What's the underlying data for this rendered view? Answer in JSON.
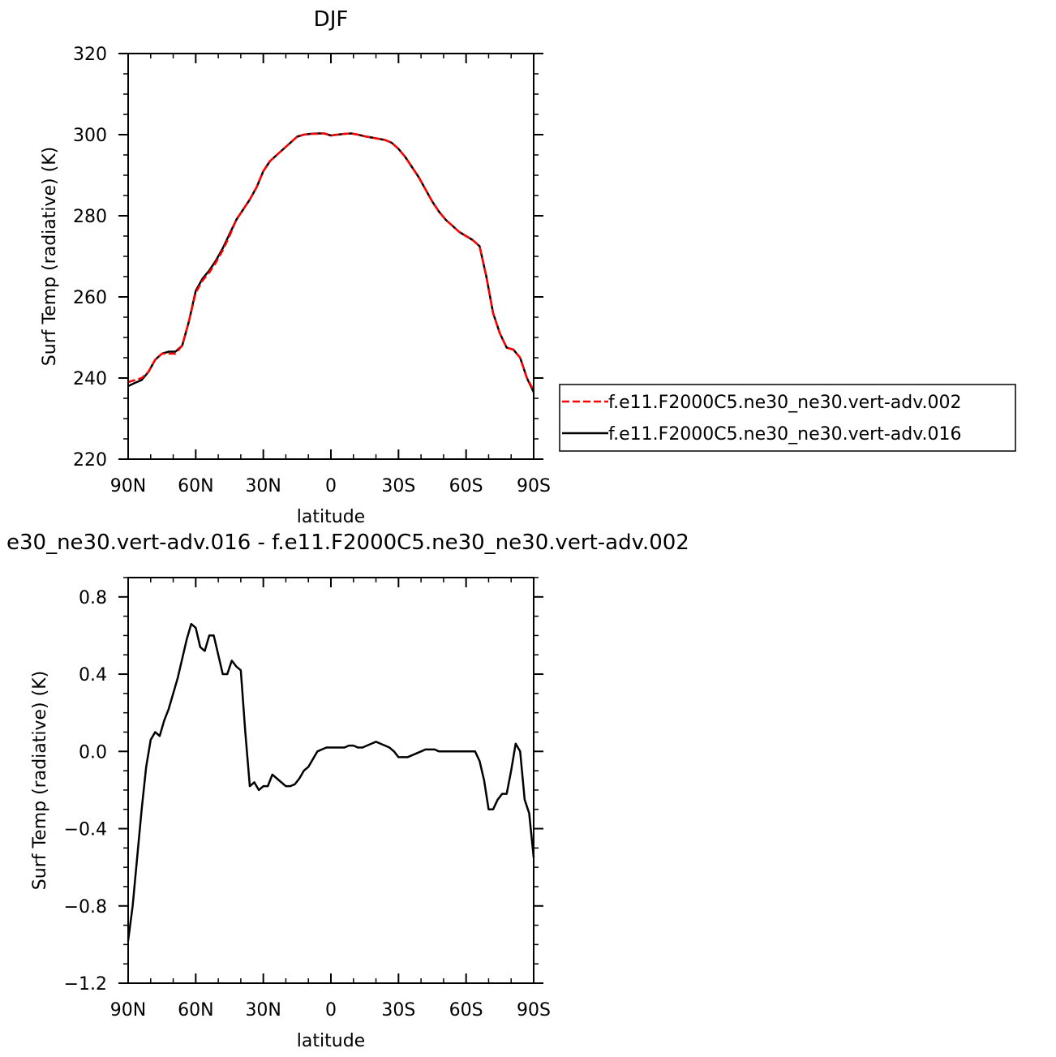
{
  "chart_data": [
    {
      "type": "line",
      "title": "DJF",
      "xlabel": "latitude",
      "ylabel": "Surf Temp (radiative) (K)",
      "xlim": [
        90,
        -90
      ],
      "ylim": [
        220,
        320
      ],
      "xticks": [
        {
          "value": 90,
          "label": "90N"
        },
        {
          "value": 60,
          "label": "60N"
        },
        {
          "value": 30,
          "label": "30N"
        },
        {
          "value": 0,
          "label": "0"
        },
        {
          "value": -30,
          "label": "30S"
        },
        {
          "value": -60,
          "label": "60S"
        },
        {
          "value": -90,
          "label": "90S"
        }
      ],
      "yticks": [
        {
          "value": 220,
          "label": "220"
        },
        {
          "value": 240,
          "label": "240"
        },
        {
          "value": 260,
          "label": "260"
        },
        {
          "value": 280,
          "label": "280"
        },
        {
          "value": 300,
          "label": "300"
        },
        {
          "value": 320,
          "label": "320"
        }
      ],
      "legend": {
        "placement": "right",
        "box": true
      },
      "series": [
        {
          "name": "f.e11.F2000C5.ne30_ne30.vert-adv.002",
          "color": "#ff0000",
          "dash": "dashed",
          "points": [
            [
              90,
              239.0
            ],
            [
              87,
              239.5
            ],
            [
              84,
              240.0
            ],
            [
              81,
              241.5
            ],
            [
              78,
              244.5
            ],
            [
              75,
              246.0
            ],
            [
              72,
              246.0
            ],
            [
              69,
              246.0
            ],
            [
              66,
              248.0
            ],
            [
              63,
              254.0
            ],
            [
              60,
              261.0
            ],
            [
              57,
              264.0
            ],
            [
              54,
              266.0
            ],
            [
              51,
              268.5
            ],
            [
              48,
              271.5
            ],
            [
              45,
              275.0
            ],
            [
              42,
              279.0
            ],
            [
              39,
              281.5
            ],
            [
              36,
              284.0
            ],
            [
              33,
              287.0
            ],
            [
              30,
              291.0
            ],
            [
              27,
              293.5
            ],
            [
              24,
              295.0
            ],
            [
              21,
              296.5
            ],
            [
              18,
              298.0
            ],
            [
              15,
              299.5
            ],
            [
              12,
              300.0
            ],
            [
              9,
              300.2
            ],
            [
              6,
              300.2
            ],
            [
              3,
              300.3
            ],
            [
              0,
              299.8
            ],
            [
              -3,
              300.0
            ],
            [
              -6,
              300.2
            ],
            [
              -9,
              300.3
            ],
            [
              -12,
              300.0
            ],
            [
              -15,
              299.6
            ],
            [
              -18,
              299.3
            ],
            [
              -21,
              299.0
            ],
            [
              -24,
              298.7
            ],
            [
              -27,
              298.0
            ],
            [
              -30,
              296.5
            ],
            [
              -33,
              294.5
            ],
            [
              -36,
              292.0
            ],
            [
              -39,
              289.5
            ],
            [
              -42,
              286.5
            ],
            [
              -45,
              283.5
            ],
            [
              -48,
              281.0
            ],
            [
              -51,
              279.0
            ],
            [
              -54,
              277.5
            ],
            [
              -57,
              276.0
            ],
            [
              -60,
              275.0
            ],
            [
              -63,
              274.0
            ],
            [
              -66,
              272.5
            ],
            [
              -69,
              265.0
            ],
            [
              -72,
              256.0
            ],
            [
              -75,
              251.0
            ],
            [
              -78,
              247.5
            ],
            [
              -81,
              247.0
            ],
            [
              -84,
              245.0
            ],
            [
              -87,
              240.0
            ],
            [
              -90,
              237.0
            ]
          ]
        },
        {
          "name": "f.e11.F2000C5.ne30_ne30.vert-adv.016",
          "color": "#000000",
          "dash": "solid",
          "points": [
            [
              90,
              238.0
            ],
            [
              87,
              238.8
            ],
            [
              84,
              239.5
            ],
            [
              81,
              241.5
            ],
            [
              78,
              244.5
            ],
            [
              75,
              246.0
            ],
            [
              72,
              246.5
            ],
            [
              69,
              246.5
            ],
            [
              66,
              248.0
            ],
            [
              63,
              254.0
            ],
            [
              60,
              261.5
            ],
            [
              57,
              264.5
            ],
            [
              54,
              266.5
            ],
            [
              51,
              269.0
            ],
            [
              48,
              272.0
            ],
            [
              45,
              275.5
            ],
            [
              42,
              279.0
            ],
            [
              39,
              281.5
            ],
            [
              36,
              284.0
            ],
            [
              33,
              287.0
            ],
            [
              30,
              291.0
            ],
            [
              27,
              293.5
            ],
            [
              24,
              295.0
            ],
            [
              21,
              296.5
            ],
            [
              18,
              298.0
            ],
            [
              15,
              299.5
            ],
            [
              12,
              300.0
            ],
            [
              9,
              300.2
            ],
            [
              6,
              300.3
            ],
            [
              3,
              300.3
            ],
            [
              0,
              299.8
            ],
            [
              -3,
              300.0
            ],
            [
              -6,
              300.2
            ],
            [
              -9,
              300.3
            ],
            [
              -12,
              300.0
            ],
            [
              -15,
              299.6
            ],
            [
              -18,
              299.3
            ],
            [
              -21,
              299.0
            ],
            [
              -24,
              298.7
            ],
            [
              -27,
              298.0
            ],
            [
              -30,
              296.5
            ],
            [
              -33,
              294.5
            ],
            [
              -36,
              292.0
            ],
            [
              -39,
              289.5
            ],
            [
              -42,
              286.5
            ],
            [
              -45,
              283.5
            ],
            [
              -48,
              281.0
            ],
            [
              -51,
              279.0
            ],
            [
              -54,
              277.5
            ],
            [
              -57,
              276.0
            ],
            [
              -60,
              275.0
            ],
            [
              -63,
              274.0
            ],
            [
              -66,
              272.5
            ],
            [
              -69,
              265.0
            ],
            [
              -72,
              256.0
            ],
            [
              -75,
              251.0
            ],
            [
              -78,
              247.5
            ],
            [
              -81,
              247.0
            ],
            [
              -84,
              245.0
            ],
            [
              -87,
              240.0
            ],
            [
              -90,
              236.5
            ]
          ]
        }
      ]
    },
    {
      "type": "line",
      "title": "e30_ne30.vert-adv.016 - f.e11.F2000C5.ne30_ne30.vert-adv.002",
      "xlabel": "latitude",
      "ylabel": "Surf Temp (radiative) (K)",
      "xlim": [
        90,
        -90
      ],
      "ylim": [
        -1.2,
        0.9
      ],
      "xticks": [
        {
          "value": 90,
          "label": "90N"
        },
        {
          "value": 60,
          "label": "60N"
        },
        {
          "value": 30,
          "label": "30N"
        },
        {
          "value": 0,
          "label": "0"
        },
        {
          "value": -30,
          "label": "30S"
        },
        {
          "value": -60,
          "label": "60S"
        },
        {
          "value": -90,
          "label": "90S"
        }
      ],
      "yticks": [
        {
          "value": -1.2,
          "label": "−1.2"
        },
        {
          "value": -0.8,
          "label": "−0.8"
        },
        {
          "value": -0.4,
          "label": "−0.4"
        },
        {
          "value": 0.0,
          "label": "0.0"
        },
        {
          "value": 0.4,
          "label": "0.4"
        },
        {
          "value": 0.8,
          "label": "0.8"
        }
      ],
      "series": [
        {
          "color": "#000000",
          "dash": "solid",
          "points": [
            [
              90,
              -0.98
            ],
            [
              88,
              -0.8
            ],
            [
              86,
              -0.55
            ],
            [
              84,
              -0.3
            ],
            [
              82,
              -0.08
            ],
            [
              80,
              0.06
            ],
            [
              78,
              0.1
            ],
            [
              76,
              0.08
            ],
            [
              74,
              0.16
            ],
            [
              72,
              0.22
            ],
            [
              70,
              0.3
            ],
            [
              68,
              0.38
            ],
            [
              66,
              0.48
            ],
            [
              64,
              0.58
            ],
            [
              62,
              0.66
            ],
            [
              60,
              0.64
            ],
            [
              58,
              0.54
            ],
            [
              56,
              0.52
            ],
            [
              54,
              0.6
            ],
            [
              52,
              0.6
            ],
            [
              50,
              0.5
            ],
            [
              48,
              0.4
            ],
            [
              46,
              0.4
            ],
            [
              44,
              0.47
            ],
            [
              42,
              0.44
            ],
            [
              40,
              0.42
            ],
            [
              38,
              0.1
            ],
            [
              36,
              -0.18
            ],
            [
              34,
              -0.16
            ],
            [
              32,
              -0.2
            ],
            [
              30,
              -0.18
            ],
            [
              28,
              -0.18
            ],
            [
              26,
              -0.12
            ],
            [
              24,
              -0.14
            ],
            [
              22,
              -0.16
            ],
            [
              20,
              -0.18
            ],
            [
              18,
              -0.18
            ],
            [
              16,
              -0.17
            ],
            [
              14,
              -0.14
            ],
            [
              12,
              -0.1
            ],
            [
              10,
              -0.08
            ],
            [
              8,
              -0.04
            ],
            [
              6,
              0.0
            ],
            [
              4,
              0.01
            ],
            [
              2,
              0.02
            ],
            [
              0,
              0.02
            ],
            [
              -2,
              0.02
            ],
            [
              -4,
              0.02
            ],
            [
              -6,
              0.02
            ],
            [
              -8,
              0.03
            ],
            [
              -10,
              0.03
            ],
            [
              -12,
              0.02
            ],
            [
              -14,
              0.02
            ],
            [
              -16,
              0.03
            ],
            [
              -18,
              0.04
            ],
            [
              -20,
              0.05
            ],
            [
              -22,
              0.04
            ],
            [
              -24,
              0.03
            ],
            [
              -26,
              0.02
            ],
            [
              -28,
              0.0
            ],
            [
              -30,
              -0.03
            ],
            [
              -32,
              -0.03
            ],
            [
              -34,
              -0.03
            ],
            [
              -36,
              -0.02
            ],
            [
              -38,
              -0.01
            ],
            [
              -40,
              0.0
            ],
            [
              -42,
              0.01
            ],
            [
              -44,
              0.01
            ],
            [
              -46,
              0.01
            ],
            [
              -48,
              0.0
            ],
            [
              -50,
              0.0
            ],
            [
              -52,
              0.0
            ],
            [
              -54,
              0.0
            ],
            [
              -56,
              0.0
            ],
            [
              -58,
              0.0
            ],
            [
              -60,
              0.0
            ],
            [
              -62,
              0.0
            ],
            [
              -64,
              0.0
            ],
            [
              -66,
              -0.05
            ],
            [
              -68,
              -0.15
            ],
            [
              -70,
              -0.3
            ],
            [
              -72,
              -0.3
            ],
            [
              -74,
              -0.25
            ],
            [
              -76,
              -0.22
            ],
            [
              -78,
              -0.22
            ],
            [
              -80,
              -0.1
            ],
            [
              -82,
              0.04
            ],
            [
              -84,
              0.0
            ],
            [
              -86,
              -0.25
            ],
            [
              -88,
              -0.32
            ],
            [
              -90,
              -0.55
            ]
          ]
        }
      ]
    }
  ]
}
